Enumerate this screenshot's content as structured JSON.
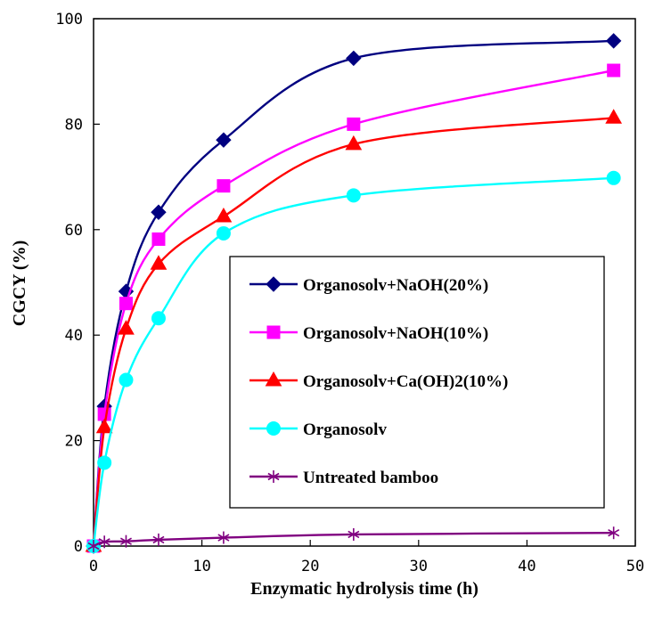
{
  "chart_data": {
    "type": "line",
    "title": "",
    "xlabel": "Enzymatic hydrolysis time (h)",
    "ylabel": "CGCY (%)",
    "xlim": [
      0,
      50
    ],
    "ylim": [
      0,
      100
    ],
    "xticks": [
      0,
      10,
      20,
      30,
      40,
      50
    ],
    "yticks": [
      0,
      20,
      40,
      60,
      80,
      100
    ],
    "x_tick_labels": [
      "0",
      "10",
      "20",
      "30",
      "40",
      "50"
    ],
    "y_tick_labels": [
      "0",
      "20",
      "40",
      "60",
      "80",
      "100"
    ],
    "grid": false,
    "legend_position": "center-right",
    "series": [
      {
        "name": "Organosolv+NaOH(20%)",
        "color": "#000080",
        "marker": "diamond",
        "x": [
          0,
          1,
          3,
          6,
          12,
          24,
          48
        ],
        "y": [
          0,
          26.5,
          48.3,
          63.3,
          77,
          92.5,
          95.8
        ]
      },
      {
        "name": "Organosolv+NaOH(10%)",
        "color": "#ff00ff",
        "marker": "square",
        "x": [
          0,
          1,
          3,
          6,
          12,
          24,
          48
        ],
        "y": [
          0,
          25,
          46,
          58.2,
          68.3,
          80,
          90.2
        ]
      },
      {
        "name": "Organosolv+Ca(OH)2(10%)",
        "color": "#ff0000",
        "marker": "triangle",
        "x": [
          0,
          1,
          3,
          6,
          12,
          24,
          48
        ],
        "y": [
          0,
          22.5,
          41.2,
          53.5,
          62.5,
          76.2,
          81.2
        ]
      },
      {
        "name": "Organosolv",
        "color": "#00ffff",
        "marker": "circle",
        "x": [
          0,
          1,
          3,
          6,
          12,
          24,
          48
        ],
        "y": [
          0,
          15.8,
          31.5,
          43.2,
          59.3,
          66.5,
          69.8
        ]
      },
      {
        "name": "Untreated bamboo",
        "color": "#800080",
        "marker": "asterisk",
        "x": [
          0,
          1,
          3,
          6,
          12,
          24,
          48
        ],
        "y": [
          0,
          0.8,
          0.9,
          1.2,
          1.6,
          2.2,
          2.5
        ]
      }
    ]
  }
}
